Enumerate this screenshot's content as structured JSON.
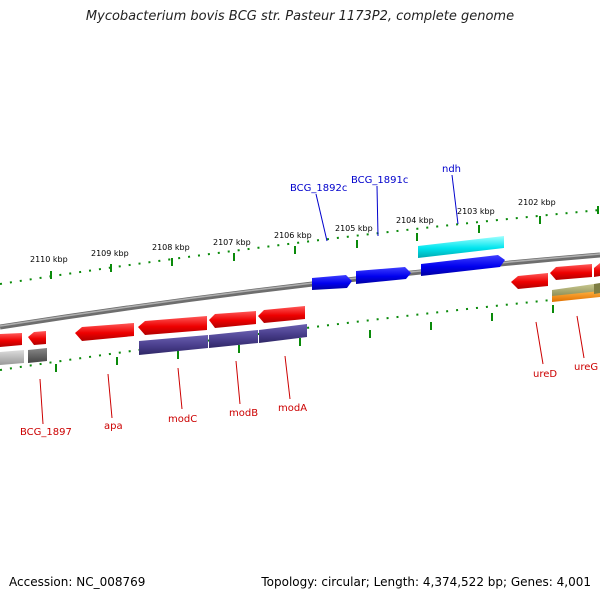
{
  "title": "Mycobacterium bovis BCG str. Pasteur 1173P2, complete genome",
  "footer": {
    "accession": "Accession: NC_008769",
    "topology": "Topology: circular; Length: 4,374,522 bp; Genes: 4,001"
  },
  "ruler": {
    "labels": [
      "2110 kbp",
      "2109 kbp",
      "2108 kbp",
      "2107 kbp",
      "2106 kbp",
      "2105 kbp",
      "2104 kbp",
      "2103 kbp",
      "2102 kbp"
    ]
  },
  "colors": {
    "cds": "#ff0000",
    "forward_cds": "#0000ff",
    "rna_cyan": "#00e5ee",
    "purple": "#483d8b",
    "grey": "#a9a9a9",
    "olive": "#9b9b5a",
    "orange": "#ff8c00",
    "backbone": "#808080",
    "ticks": "#007a00",
    "label_red": "#cc0000",
    "label_blue": "#0000cc"
  },
  "genes": {
    "top": [
      "BCG_1892c",
      "BCG_1891c",
      "ndh"
    ],
    "bottom": [
      "BCG_1897",
      "apa",
      "modC",
      "modB",
      "modA",
      "ureD",
      "ureG"
    ]
  }
}
